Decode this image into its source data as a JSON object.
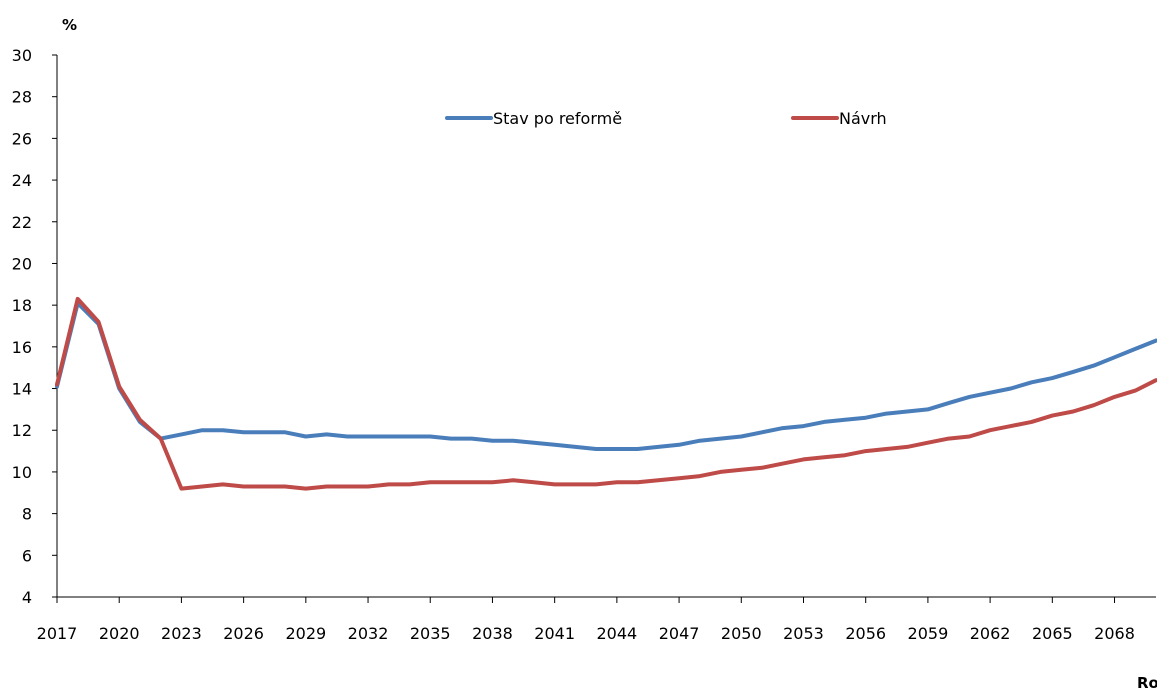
{
  "chart_data": {
    "type": "line",
    "ylabel": "%",
    "xlabel": "Ro",
    "ylim": [
      4,
      30
    ],
    "yticks": [
      4,
      6,
      8,
      10,
      12,
      14,
      16,
      18,
      20,
      22,
      24,
      26,
      28,
      30
    ],
    "xlim": [
      2017,
      2070
    ],
    "xticks": [
      2017,
      2020,
      2023,
      2026,
      2029,
      2032,
      2035,
      2038,
      2041,
      2044,
      2047,
      2050,
      2053,
      2056,
      2059,
      2062,
      2065,
      2068
    ],
    "grid": false,
    "legend_position": "top-center",
    "x": [
      2017,
      2018,
      2019,
      2020,
      2021,
      2022,
      2023,
      2024,
      2025,
      2026,
      2027,
      2028,
      2029,
      2030,
      2031,
      2032,
      2033,
      2034,
      2035,
      2036,
      2037,
      2038,
      2039,
      2040,
      2041,
      2042,
      2043,
      2044,
      2045,
      2046,
      2047,
      2048,
      2049,
      2050,
      2051,
      2052,
      2053,
      2054,
      2055,
      2056,
      2057,
      2058,
      2059,
      2060,
      2061,
      2062,
      2063,
      2064,
      2065,
      2066,
      2067,
      2068,
      2069,
      2070
    ],
    "series": [
      {
        "name": "Stav po reformě",
        "color": "#4a7ebb",
        "values": [
          14.1,
          18.1,
          17.1,
          14.0,
          12.4,
          11.6,
          11.8,
          12.0,
          12.0,
          11.9,
          11.9,
          11.9,
          11.7,
          11.8,
          11.7,
          11.7,
          11.7,
          11.7,
          11.7,
          11.6,
          11.6,
          11.5,
          11.5,
          11.4,
          11.3,
          11.2,
          11.1,
          11.1,
          11.1,
          11.2,
          11.3,
          11.5,
          11.6,
          11.7,
          11.9,
          12.1,
          12.2,
          12.4,
          12.5,
          12.6,
          12.8,
          12.9,
          13.0,
          13.3,
          13.6,
          13.8,
          14.0,
          14.3,
          14.5,
          14.8,
          15.1,
          15.5,
          15.9,
          16.3
        ]
      },
      {
        "name": "Návrh",
        "color": "#be4b48",
        "values": [
          14.2,
          18.3,
          17.2,
          14.1,
          12.5,
          11.6,
          9.2,
          9.3,
          9.4,
          9.3,
          9.3,
          9.3,
          9.2,
          9.3,
          9.3,
          9.3,
          9.4,
          9.4,
          9.5,
          9.5,
          9.5,
          9.5,
          9.6,
          9.5,
          9.4,
          9.4,
          9.4,
          9.5,
          9.5,
          9.6,
          9.7,
          9.8,
          10.0,
          10.1,
          10.2,
          10.4,
          10.6,
          10.7,
          10.8,
          11.0,
          11.1,
          11.2,
          11.4,
          11.6,
          11.7,
          12.0,
          12.2,
          12.4,
          12.7,
          12.9,
          13.2,
          13.6,
          13.9,
          14.4
        ]
      }
    ]
  }
}
